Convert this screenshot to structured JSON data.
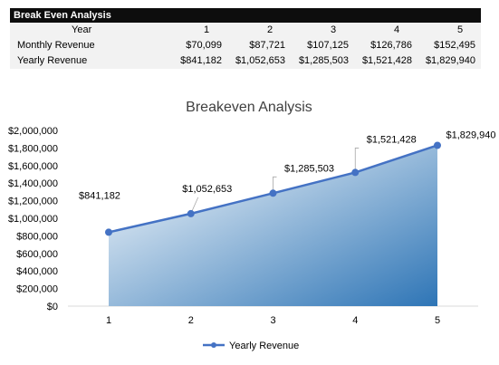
{
  "table": {
    "title": "Break Even Analysis",
    "year_label": "Year",
    "years": [
      "1",
      "2",
      "3",
      "4",
      "5"
    ],
    "rows": [
      {
        "label": "Monthly Revenue",
        "values": [
          "$70,099",
          "$87,721",
          "$107,125",
          "$126,786",
          "$152,495"
        ]
      },
      {
        "label": "Yearly Revenue",
        "values": [
          "$841,182",
          "$1,052,653",
          "$1,285,503",
          "$1,521,428",
          "$1,829,940"
        ]
      }
    ]
  },
  "chart_data": {
    "type": "area",
    "title": "Breakeven Analysis",
    "xlabel": "",
    "ylabel": "",
    "categories": [
      "1",
      "2",
      "3",
      "4",
      "5"
    ],
    "series": [
      {
        "name": "Yearly Revenue",
        "values": [
          841182,
          1052653,
          1285503,
          1521428,
          1829940
        ],
        "labels": [
          "$841,182",
          "$1,052,653",
          "$1,285,503",
          "$1,521,428",
          "$1,829,940"
        ]
      }
    ],
    "ylim": [
      0,
      2000000
    ],
    "yticks": [
      "$0",
      "$200,000",
      "$400,000",
      "$600,000",
      "$800,000",
      "$1,000,000",
      "$1,200,000",
      "$1,400,000",
      "$1,600,000",
      "$1,800,000",
      "$2,000,000"
    ],
    "grid": false,
    "legend": "bottom",
    "colors": {
      "line": "#4472c4",
      "fill_dark": "#2e75b6",
      "fill_light": "#ffffff"
    }
  }
}
